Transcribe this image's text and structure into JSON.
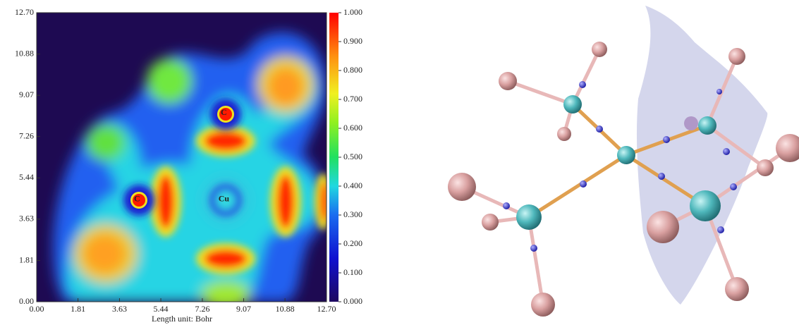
{
  "chart_data": {
    "type": "heatmap",
    "xlabel": "Length unit: Bohr",
    "xlim": [
      0,
      12.7
    ],
    "ylim": [
      0,
      12.7
    ],
    "xticks": [
      {
        "value": 0,
        "label": "0.00"
      },
      {
        "value": 1.81,
        "label": "1.81"
      },
      {
        "value": 3.63,
        "label": "3.63"
      },
      {
        "value": 5.44,
        "label": "5.44"
      },
      {
        "value": 7.26,
        "label": "7.26"
      },
      {
        "value": 9.07,
        "label": "9.07"
      },
      {
        "value": 10.88,
        "label": "10.88"
      },
      {
        "value": 12.7,
        "label": "12.70"
      }
    ],
    "yticks": [
      {
        "value": 0,
        "label": "0.00"
      },
      {
        "value": 1.81,
        "label": "1.81"
      },
      {
        "value": 3.63,
        "label": "3.63"
      },
      {
        "value": 5.44,
        "label": "5.44"
      },
      {
        "value": 7.26,
        "label": "7.26"
      },
      {
        "value": 9.07,
        "label": "9.07"
      },
      {
        "value": 10.88,
        "label": "10.88"
      },
      {
        "value": 12.7,
        "label": "12.70"
      }
    ],
    "clim": [
      0,
      1
    ],
    "cticks": [
      {
        "value": 0,
        "label": "0.000"
      },
      {
        "value": 0.1,
        "label": "0.100"
      },
      {
        "value": 0.2,
        "label": "0.200"
      },
      {
        "value": 0.3,
        "label": "0.300"
      },
      {
        "value": 0.4,
        "label": "0.400"
      },
      {
        "value": 0.5,
        "label": "0.500"
      },
      {
        "value": 0.6,
        "label": "0.600"
      },
      {
        "value": 0.7,
        "label": "0.700"
      },
      {
        "value": 0.8,
        "label": "0.800"
      },
      {
        "value": 0.9,
        "label": "0.900"
      },
      {
        "value": 1,
        "label": "1.000"
      }
    ],
    "annotations": [
      {
        "text": "C",
        "x": 4.4,
        "y": 4.5
      },
      {
        "text": "Cu",
        "x": 8.2,
        "y": 4.5
      },
      {
        "text": "C",
        "x": 8.2,
        "y": 8.3
      }
    ]
  }
}
